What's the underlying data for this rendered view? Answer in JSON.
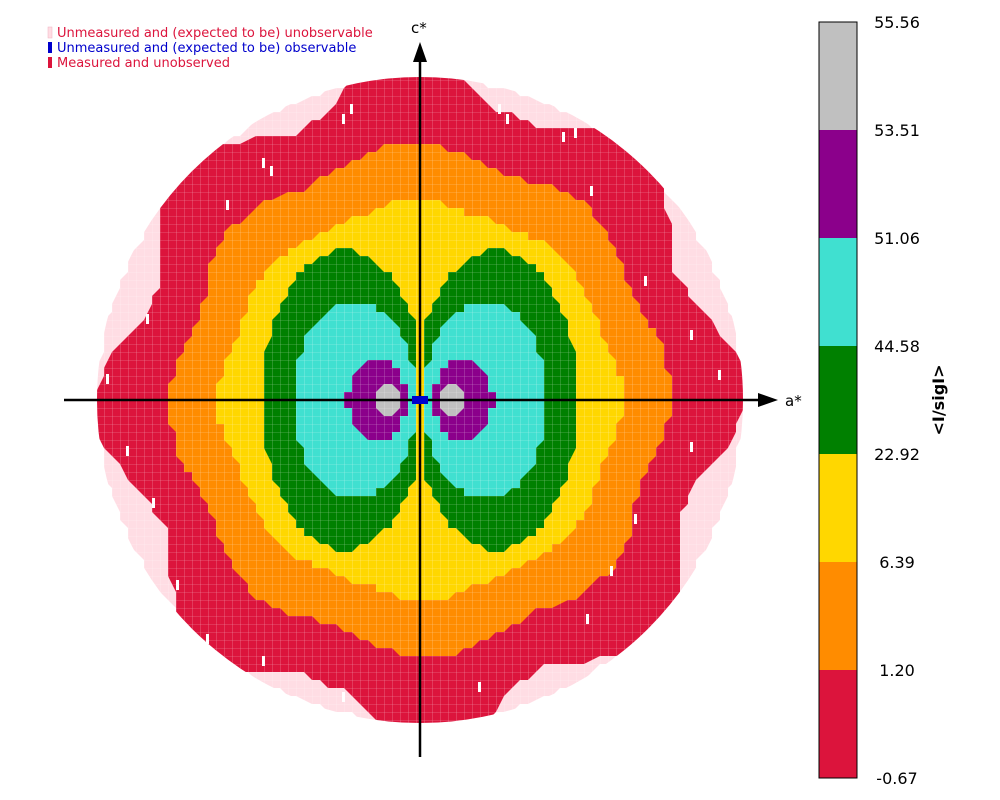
{
  "legend": {
    "unobservable_label": "Unmeasured and (expected to be) unobservable",
    "observable_label": "Unmeasured and (expected to be) observable",
    "measured_label": "Measured and unobserved",
    "unobservable_color": "#ffdde4",
    "observable_color": "#0000cc",
    "measured_color": "#dc143c"
  },
  "chart_data": {
    "type": "heatmap",
    "title": "",
    "xlabel": "a*",
    "ylabel": "c*",
    "colorbar": {
      "label": "<I/sigI>",
      "ticks": [
        "55.56",
        "53.51",
        "51.06",
        "44.58",
        "22.92",
        "6.39",
        "1.20",
        "-0.67"
      ],
      "bands": [
        {
          "from": -0.67,
          "to": 1.2,
          "color": "#dc143c"
        },
        {
          "from": 1.2,
          "to": 6.39,
          "color": "#ff8c00"
        },
        {
          "from": 6.39,
          "to": 22.92,
          "color": "#ffd700"
        },
        {
          "from": 22.92,
          "to": 44.58,
          "color": "#008000"
        },
        {
          "from": 44.58,
          "to": 51.06,
          "color": "#40e0d0"
        },
        {
          "from": 51.06,
          "to": 53.51,
          "color": "#8b008b"
        },
        {
          "from": 53.51,
          "to": 55.56,
          "color": "#c0c0c0"
        }
      ]
    },
    "unmeasured_unobservable_color": "#ffdde4"
  }
}
